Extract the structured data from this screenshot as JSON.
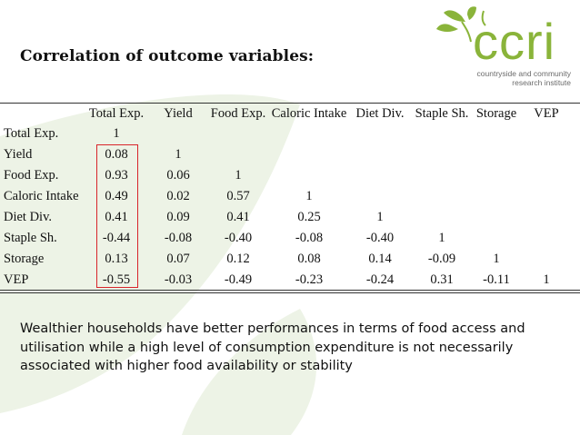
{
  "slide_title": "Correlation of outcome variables:",
  "logo": {
    "word": "ccri",
    "subtitle_line1": "countryside and community",
    "subtitle_line2": "research institute",
    "brand_color": "#8ab43a"
  },
  "table": {
    "column_headers": [
      "Total Exp.",
      "Yield",
      "Food Exp.",
      "Caloric Intake",
      "Diet Div.",
      "Staple  Sh.",
      "Storage",
      "VEP"
    ],
    "rows": [
      {
        "label": "Total Exp.",
        "values": [
          "1"
        ]
      },
      {
        "label": "Yield",
        "values": [
          "0.08",
          "1"
        ]
      },
      {
        "label": "Food Exp.",
        "values": [
          "0.93",
          "0.06",
          "1"
        ]
      },
      {
        "label": "Caloric Intake",
        "values": [
          "0.49",
          "0.02",
          "0.57",
          "1"
        ]
      },
      {
        "label": "Diet Div.",
        "values": [
          "0.41",
          "0.09",
          "0.41",
          "0.25",
          "1"
        ]
      },
      {
        "label": "Staple  Sh.",
        "values": [
          "-0.44",
          "-0.08",
          "-0.40",
          "-0.08",
          "-0.40",
          "1"
        ]
      },
      {
        "label": "Storage",
        "values": [
          "0.13",
          "0.07",
          "0.12",
          "0.08",
          "0.14",
          "-0.09",
          "1"
        ]
      },
      {
        "label": "VEP",
        "values": [
          "-0.55",
          "-0.03",
          "-0.49",
          "-0.23",
          "-0.24",
          "0.31",
          "-0.11",
          "1"
        ]
      }
    ],
    "highlight_color": "#d8242a"
  },
  "body_text": "Wealthier households have better performances in terms of food access and utilisation while a high level of consumption expenditure is not necessarily associated with higher food availability or stability"
}
